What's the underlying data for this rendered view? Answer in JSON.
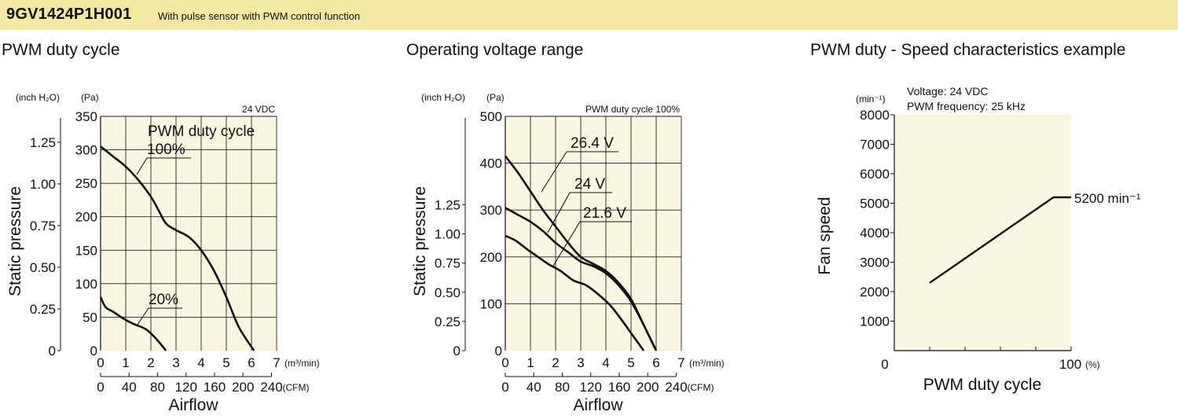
{
  "header": {
    "model": "9GV1424P1H001",
    "subtitle": "With pulse sensor with PWM control function"
  },
  "sections": [
    {
      "title": "PWM duty cycle"
    },
    {
      "title": "Operating voltage range"
    },
    {
      "title": "PWM duty - Speed characteristics example"
    }
  ],
  "chart_data": [
    {
      "type": "line",
      "title": "PWM duty cycle",
      "xlabel": "Airflow",
      "ylabel": "Static pressure",
      "x_unit": "(m³/min)",
      "x2_unit": "(CFM)",
      "y_unit": "(Pa)",
      "y2_unit": "(inch H₂O)",
      "condition": "24 VDC",
      "legend_title": "PWM duty cycle",
      "xlim": [
        0,
        7
      ],
      "ylim": [
        0,
        350
      ],
      "x_ticks": [
        "0",
        "1",
        "2",
        "3",
        "4",
        "5",
        "6",
        "7"
      ],
      "y_ticks": [
        "0",
        "50",
        "100",
        "150",
        "200",
        "250",
        "300",
        "350"
      ],
      "x2_ticks": [
        "0",
        "40",
        "80",
        "120",
        "160",
        "200",
        "240"
      ],
      "y2_ticks": [
        "0",
        "0.25",
        "0.50",
        "0.75",
        "1.00",
        "1.25"
      ],
      "grid": true,
      "series": [
        {
          "name": "100%",
          "x": [
            0,
            0.5,
            1.0,
            1.5,
            2.0,
            2.3,
            2.6,
            3.0,
            3.5,
            4.0,
            4.5,
            5.0,
            5.5,
            6.1
          ],
          "y": [
            305,
            290,
            275,
            255,
            230,
            210,
            190,
            180,
            170,
            150,
            120,
            80,
            35,
            0
          ]
        },
        {
          "name": "20%",
          "x": [
            0,
            0.2,
            0.5,
            0.9,
            1.3,
            1.8,
            2.2,
            2.6
          ],
          "y": [
            80,
            65,
            58,
            48,
            40,
            32,
            18,
            0
          ]
        }
      ],
      "annotations": [
        "100%",
        "20%"
      ]
    },
    {
      "type": "line",
      "title": "Operating voltage range",
      "xlabel": "Airflow",
      "ylabel": "Static pressure",
      "x_unit": "(m³/min)",
      "x2_unit": "(CFM)",
      "y_unit": "(Pa)",
      "y2_unit": "(inch H₂O)",
      "condition": "PWM duty cycle 100%",
      "xlim": [
        0,
        7
      ],
      "ylim": [
        0,
        500
      ],
      "x_ticks": [
        "0",
        "1",
        "2",
        "3",
        "4",
        "5",
        "6",
        "7"
      ],
      "y_ticks": [
        "0",
        "100",
        "200",
        "300",
        "400",
        "500"
      ],
      "x2_ticks": [
        "0",
        "40",
        "80",
        "120",
        "160",
        "200",
        "240"
      ],
      "y2_ticks": [
        "0",
        "0.25",
        "0.50",
        "0.75",
        "1.00",
        "1.25"
      ],
      "grid": true,
      "series": [
        {
          "name": "26.4 V",
          "x": [
            0,
            0.5,
            1.0,
            1.5,
            2.0,
            2.5,
            3.0,
            3.5,
            4.0,
            4.5,
            5.0,
            5.5,
            6.0
          ],
          "y": [
            415,
            380,
            340,
            300,
            265,
            230,
            200,
            185,
            170,
            145,
            110,
            55,
            0
          ]
        },
        {
          "name": "24 V",
          "x": [
            0,
            0.5,
            1.0,
            1.5,
            2.0,
            2.5,
            3.0,
            3.5,
            4.0,
            4.5,
            5.0,
            5.5,
            6.0
          ],
          "y": [
            305,
            290,
            275,
            255,
            230,
            210,
            190,
            180,
            165,
            140,
            105,
            55,
            0
          ]
        },
        {
          "name": "21.6 V",
          "x": [
            0,
            0.4,
            0.9,
            1.3,
            1.7,
            2.2,
            2.7,
            3.2,
            3.7,
            4.2,
            4.7,
            5.1,
            5.5
          ],
          "y": [
            245,
            235,
            215,
            200,
            185,
            170,
            150,
            140,
            120,
            95,
            60,
            30,
            0
          ]
        }
      ],
      "annotations": [
        "26.4 V",
        "24 V",
        "21.6 V"
      ]
    },
    {
      "type": "line",
      "title": "PWM duty - Speed characteristics example",
      "xlabel": "PWM duty cycle",
      "ylabel": "Fan speed",
      "x_unit": "(%)",
      "y_unit": "(min⁻¹)",
      "conditions": [
        "Voltage: 24 VDC",
        "PWM frequency: 25 kHz"
      ],
      "xlim": [
        0,
        100
      ],
      "ylim": [
        0,
        8000
      ],
      "x_ticks": [
        "0",
        "100"
      ],
      "y_ticks": [
        "1000",
        "2000",
        "3000",
        "4000",
        "5000",
        "6000",
        "7000",
        "8000"
      ],
      "grid": false,
      "series": [
        {
          "name": "",
          "x": [
            20,
            90,
            100
          ],
          "y": [
            2300,
            5200,
            5200
          ]
        }
      ],
      "annotations": [
        "5200 min⁻¹"
      ]
    }
  ]
}
